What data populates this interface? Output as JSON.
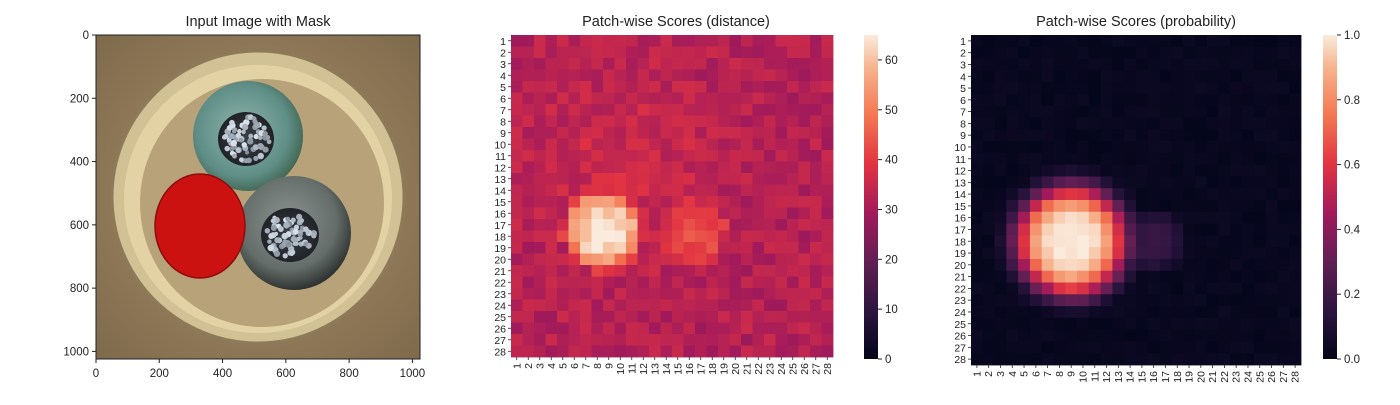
{
  "chart_data": [
    {
      "type": "image",
      "title": "Input Image with Mask",
      "xticks": [
        0,
        200,
        400,
        600,
        800,
        1000
      ],
      "yticks": [
        0,
        200,
        400,
        600,
        800,
        1000
      ],
      "xlim": [
        0,
        1024
      ],
      "ylim": [
        1024,
        0
      ],
      "mask_color": "#cc1111"
    },
    {
      "type": "heatmap",
      "title": "Patch-wise Scores (distance)",
      "rows": 28,
      "cols": 28,
      "colormap": "rocket",
      "colorbar_ticks": [
        0,
        10,
        20,
        30,
        40,
        50,
        60
      ],
      "vmin": 0,
      "vmax": 65,
      "baseline": 32,
      "hotspots": [
        {
          "row": 17.5,
          "col": 8.5,
          "peak": 64,
          "spread": 2.3
        },
        {
          "row": 17.5,
          "col": 16.5,
          "peak": 43,
          "spread": 2.4
        }
      ]
    },
    {
      "type": "heatmap",
      "title": "Patch-wise Scores (probability)",
      "rows": 28,
      "cols": 28,
      "colormap": "rocket",
      "colorbar_ticks": [
        0.0,
        0.2,
        0.4,
        0.6,
        0.8,
        1.0
      ],
      "vmin": 0.0,
      "vmax": 1.0,
      "hotspots": [
        {
          "row": 18,
          "col": 9,
          "peak": 1.0,
          "spread": 2.6
        },
        {
          "row": 18,
          "col": 16,
          "peak": 0.18,
          "spread": 1.4
        }
      ]
    }
  ]
}
